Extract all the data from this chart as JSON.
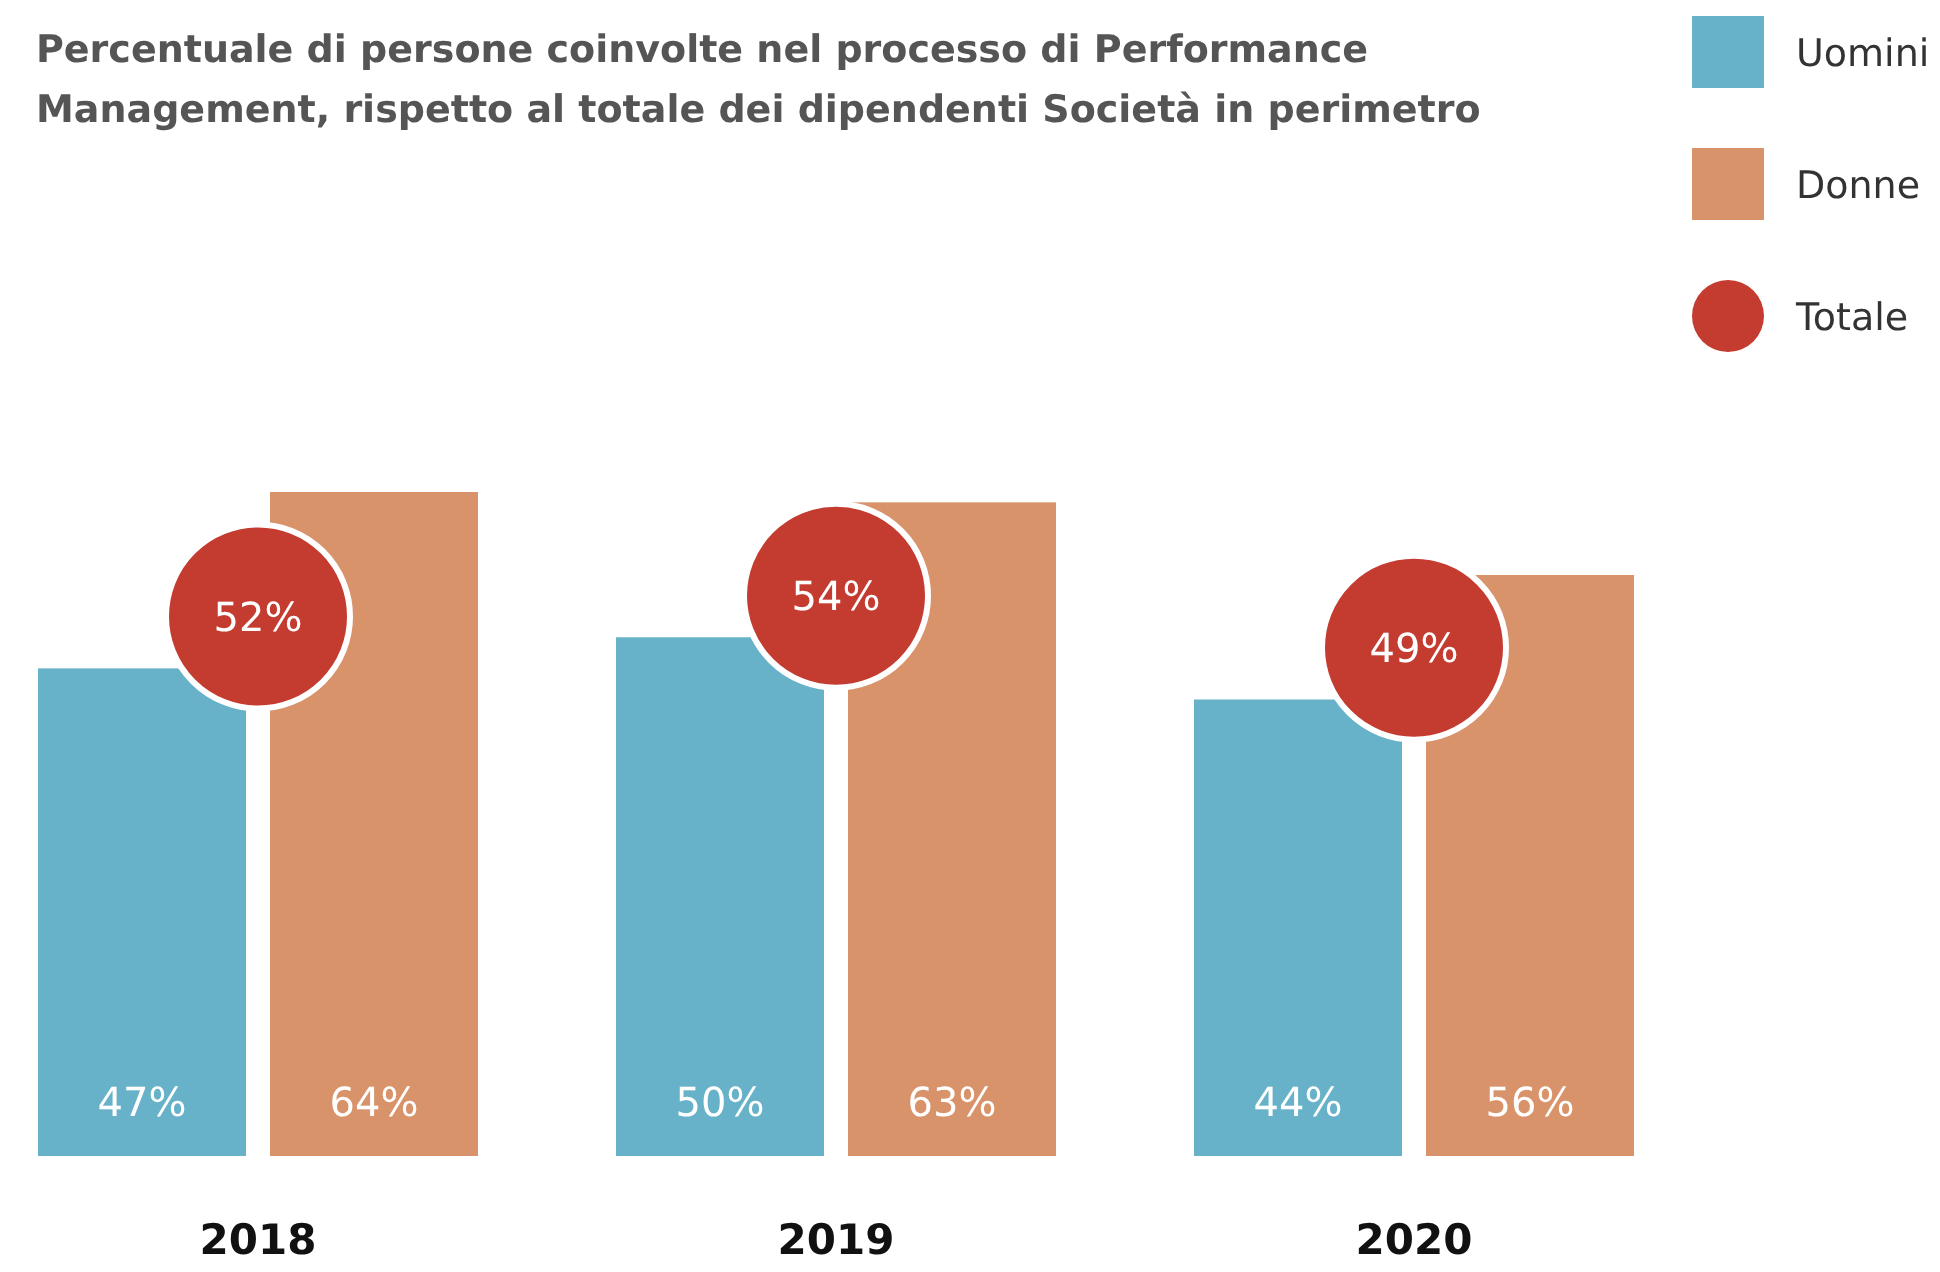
{
  "chart_data": {
    "type": "bar",
    "title": "Percentuale di persone coinvolte nel processo di Performance\nManagement, rispetto al totale dei dipendenti Società in perimetro",
    "categories": [
      "2018",
      "2019",
      "2020"
    ],
    "series": [
      {
        "name": "Uomini",
        "color": "#67b2c9",
        "values": [
          47,
          50,
          44
        ],
        "value_labels": [
          "47%",
          "50%",
          "44%"
        ]
      },
      {
        "name": "Donne",
        "color": "#d9936b",
        "values": [
          64,
          63,
          56
        ],
        "value_labels": [
          "64%",
          "63%",
          "56%"
        ]
      },
      {
        "name": "Totale",
        "type": "scatter",
        "color": "#c43b30",
        "values": [
          52,
          54,
          49
        ],
        "value_labels": [
          "52%",
          "54%",
          "49%"
        ]
      }
    ],
    "legend": "top right"
  }
}
